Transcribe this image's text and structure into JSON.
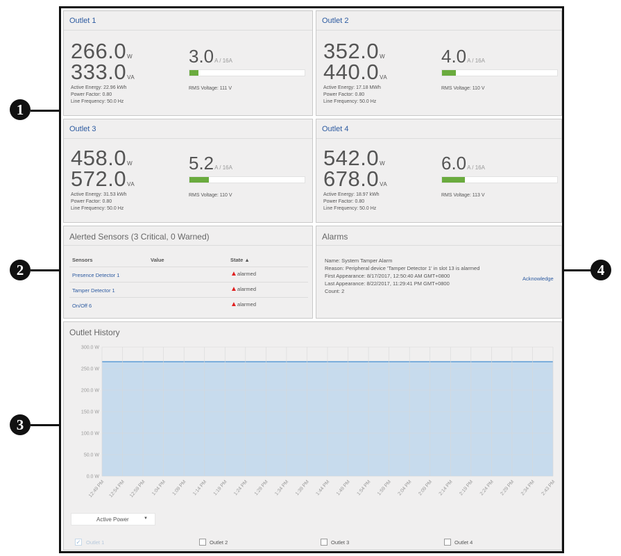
{
  "callouts": [
    "1",
    "2",
    "3",
    "4"
  ],
  "outlets": [
    {
      "title": "Outlet 1",
      "power": "266.0",
      "power_unit": "W",
      "apparent": "333.0",
      "apparent_unit": "VA",
      "current": "3.0",
      "current_unit": "A / 16A",
      "active_energy": "Active Energy: 22.96 kWh",
      "power_factor": "Power Factor: 0.80",
      "line_freq": "Line Frequency: 50.0 Hz",
      "rms": "RMS Voltage: 111 V",
      "load_fraction": 0.08
    },
    {
      "title": "Outlet 2",
      "power": "352.0",
      "power_unit": "W",
      "apparent": "440.0",
      "apparent_unit": "VA",
      "current": "4.0",
      "current_unit": "A / 16A",
      "active_energy": "Active Energy: 17.18 MWh",
      "power_factor": "Power Factor: 0.80",
      "line_freq": "Line Frequency: 50.0 Hz",
      "rms": "RMS Voltage: 110 V",
      "load_fraction": 0.12
    },
    {
      "title": "Outlet 3",
      "power": "458.0",
      "power_unit": "W",
      "apparent": "572.0",
      "apparent_unit": "VA",
      "current": "5.2",
      "current_unit": "A / 16A",
      "active_energy": "Active Energy: 31.53 kWh",
      "power_factor": "Power Factor: 0.80",
      "line_freq": "Line Frequency: 50.0 Hz",
      "rms": "RMS Voltage: 110 V",
      "load_fraction": 0.17
    },
    {
      "title": "Outlet 4",
      "power": "542.0",
      "power_unit": "W",
      "apparent": "678.0",
      "apparent_unit": "VA",
      "current": "6.0",
      "current_unit": "A / 16A",
      "active_energy": "Active Energy: 18.97 kWh",
      "power_factor": "Power Factor: 0.80",
      "line_freq": "Line Frequency: 50.0 Hz",
      "rms": "RMS Voltage: 113 V",
      "load_fraction": 0.2
    }
  ],
  "sensors": {
    "title": "Alerted Sensors (3 Critical, 0 Warned)",
    "headers": {
      "sensors": "Sensors",
      "value": "Value",
      "state": "State ▲"
    },
    "rows": [
      {
        "name": "Presence Detector 1",
        "value": "",
        "state": "alarmed"
      },
      {
        "name": "Tamper Detector 1",
        "value": "",
        "state": "alarmed"
      },
      {
        "name": "On/Off 6",
        "value": "",
        "state": "alarmed"
      }
    ]
  },
  "alarms": {
    "title": "Alarms",
    "name": "Name: System Tamper Alarm",
    "reason": "Reason: Peripheral device 'Tamper Detector 1' in slot 13 is alarmed",
    "first": "First Appearance: 8/17/2017, 12:50:40 AM GMT+0800",
    "last": "Last Appearance: 8/22/2017, 11:29:41 PM GMT+0800",
    "count": "Count: 2",
    "acknowledge": "Acknowledge"
  },
  "history": {
    "title": "Outlet History",
    "select_value": "Active Power",
    "checkboxes": [
      {
        "label": "Outlet 1",
        "checked": true
      },
      {
        "label": "Outlet 2",
        "checked": false
      },
      {
        "label": "Outlet 3",
        "checked": false
      },
      {
        "label": "Outlet 4",
        "checked": false
      }
    ]
  },
  "colors": {
    "line": "#5b9bd5",
    "area": "#c7dbed",
    "bar": "#6aab3e",
    "link": "#2c5aa0",
    "alert": "#e02020"
  },
  "chart_data": {
    "type": "area",
    "title": "Outlet History",
    "xlabel": "",
    "ylabel": "",
    "ylim": [
      0,
      300
    ],
    "yticks": [
      "0.0 W",
      "50.0 W",
      "100.0 W",
      "150.0 W",
      "200.0 W",
      "250.0 W",
      "300.0 W"
    ],
    "ytick_values": [
      0,
      50,
      100,
      150,
      200,
      250,
      300
    ],
    "x": [
      "12:49 PM",
      "12:54 PM",
      "12:59 PM",
      "1:04 PM",
      "1:09 PM",
      "1:14 PM",
      "1:19 PM",
      "1:24 PM",
      "1:29 PM",
      "1:34 PM",
      "1:39 PM",
      "1:44 PM",
      "1:49 PM",
      "1:54 PM",
      "1:59 PM",
      "2:04 PM",
      "2:09 PM",
      "2:14 PM",
      "2:19 PM",
      "2:24 PM",
      "2:29 PM",
      "2:34 PM",
      "2:43 PM"
    ],
    "series": [
      {
        "name": "Outlet 1",
        "values": [
          266,
          266,
          266,
          266,
          266,
          266,
          266,
          266,
          266,
          266,
          266,
          266,
          266,
          266,
          266,
          266,
          266,
          266,
          266,
          266,
          266,
          266,
          266
        ]
      }
    ],
    "grid": true
  }
}
